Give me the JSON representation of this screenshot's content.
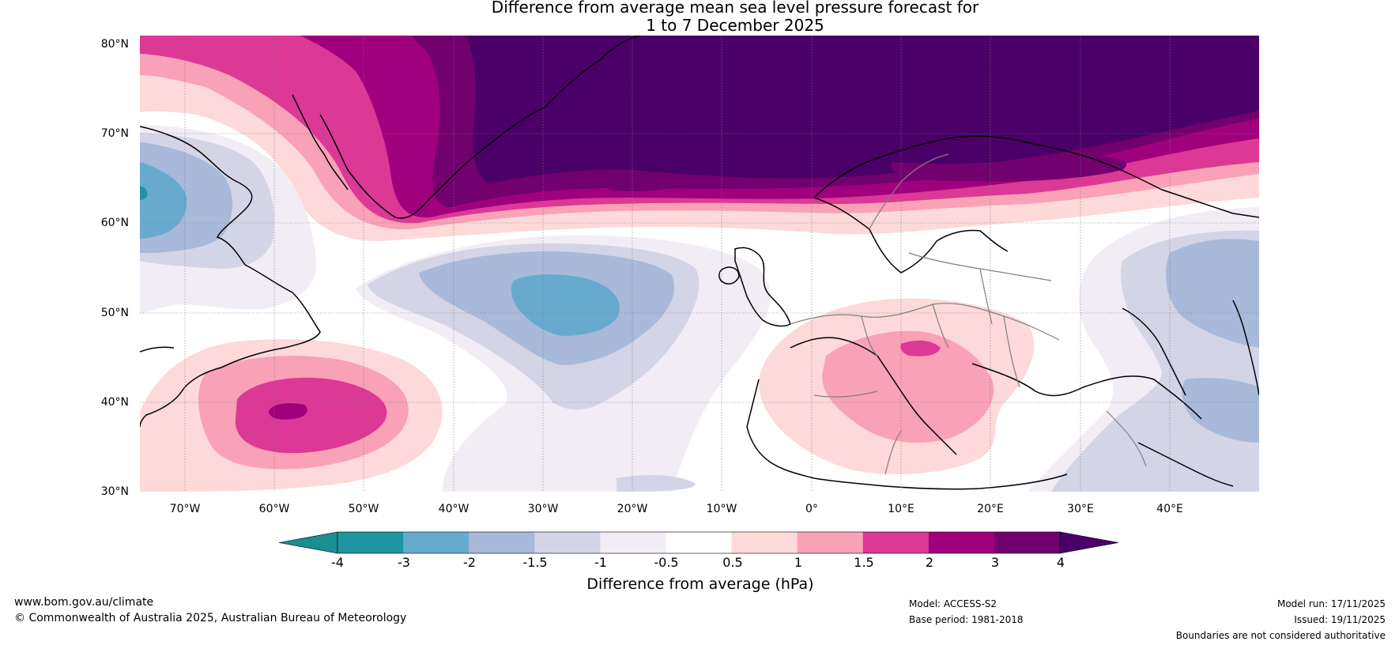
{
  "title": {
    "line1": "Difference from average mean sea level pressure forecast for",
    "line2": "1 to 7 December 2025"
  },
  "map": {
    "lat_labels": [
      "80°N",
      "70°N",
      "60°N",
      "50°N",
      "40°N",
      "30°N"
    ],
    "lon_labels": [
      "70°W",
      "60°W",
      "50°W",
      "40°W",
      "30°W",
      "20°W",
      "10°W",
      "0°",
      "10°E",
      "20°E",
      "30°E",
      "40°E"
    ],
    "lat_range": [
      30,
      80
    ],
    "lon_range": [
      -75,
      50
    ]
  },
  "colorbar": {
    "ticks": [
      "-4",
      "-3",
      "-2",
      "-1.5",
      "-1",
      "-0.5",
      "0.5",
      "1",
      "1.5",
      "2",
      "3",
      "4"
    ],
    "colors": [
      "#1a8f8f",
      "#1e95a0",
      "#68aace",
      "#a8b9da",
      "#d4d4e7",
      "#f2edf5",
      "#ffffff",
      "#fdd9d9",
      "#f8a1b7",
      "#dc3896",
      "#a0007e",
      "#72006e",
      "#4a0068"
    ],
    "label": "Difference from average (hPa)"
  },
  "footer": {
    "website": "www.bom.gov.au/climate",
    "copyright": "© Commonwealth of Australia 2025, Australian Bureau of Meteorology",
    "model": "Model: ACCESS-S2",
    "base_period": "Base period: 1981-2018",
    "model_run": "Model run: 17/11/2025",
    "issued": "Issued: 19/11/2025",
    "boundaries": "Boundaries are not considered authoritative"
  }
}
